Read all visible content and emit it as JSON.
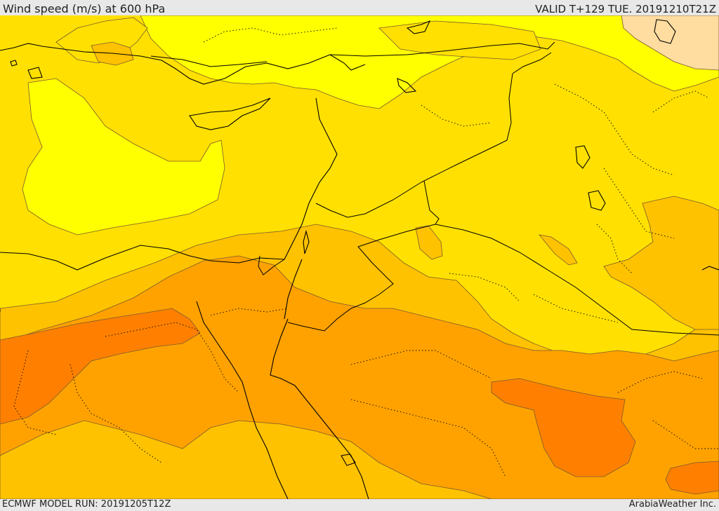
{
  "header": {
    "title": "Wind speed (m/s) at 600 hPa",
    "valid": "VALID T+129 TUE. 20191210T21Z"
  },
  "footer": {
    "model_run": "ECMWF MODEL RUN: 20191205T12Z",
    "credit": "ArabiaWeather Inc."
  },
  "colors": {
    "band_lightest": "#ffff00",
    "band_light": "#ffe000",
    "band_mid": "#ffc200",
    "band_strong": "#ffa200",
    "band_stronger": "#ff8000",
    "band_peak": "#ffdca0",
    "coastline": "#000000",
    "contour": "#7a5a30"
  }
}
